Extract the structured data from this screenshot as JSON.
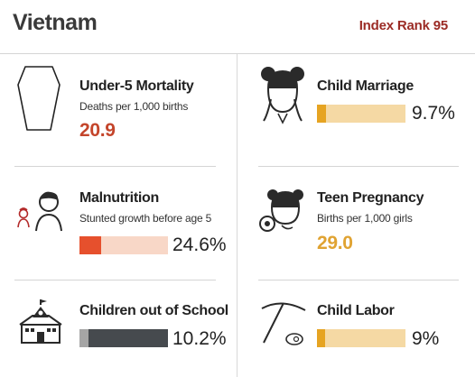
{
  "header": {
    "country": "Vietnam",
    "rank_label": "Index Rank 95"
  },
  "colors": {
    "mortality_red": "#c4452b",
    "teen_gold": "#e0a332",
    "marriage_fill": "#e6a422",
    "marriage_bg": "#f5d9a4",
    "malnutrition_fill": "#e6502d",
    "malnutrition_bg": "#f8d7c7",
    "school_fill": "#464a4e",
    "school_bg": "#a5a5a5",
    "labor_fill": "#e6a422",
    "labor_bg": "#f5d9a4"
  },
  "indicators": {
    "mortality": {
      "label": "Under-5 Mortality",
      "sub": "Deaths per 1,000 births",
      "value": "20.9",
      "icon": "coffin-icon"
    },
    "marriage": {
      "label": "Child Marriage",
      "value": "9.7%",
      "fraction": 0.097,
      "icon": "girl-icon"
    },
    "malnutrition": {
      "label": "Malnutrition",
      "sub": "Stunted growth before age 5",
      "value": "24.6%",
      "fraction": 0.246,
      "icon": "children-icon"
    },
    "teen": {
      "label": "Teen Pregnancy",
      "sub": "Births per 1,000 girls",
      "value": "29.0",
      "icon": "mother-baby-icon"
    },
    "school": {
      "label": "Children out of School",
      "value": "10.2%",
      "fraction": 0.102,
      "icon": "schoolhouse-icon"
    },
    "labor": {
      "label": "Child Labor",
      "value": "9%",
      "fraction": 0.09,
      "icon": "pickaxe-icon"
    }
  }
}
